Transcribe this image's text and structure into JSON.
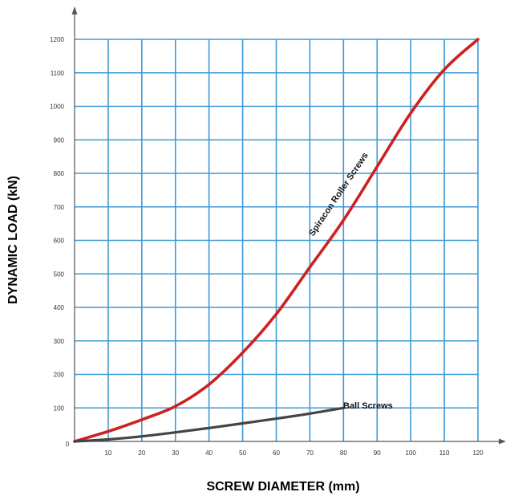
{
  "chart_data": {
    "type": "line",
    "xlabel": "SCREW DIAMETER (mm)",
    "ylabel": "DYNAMIC LOAD (kN)",
    "xlim": [
      0,
      120
    ],
    "ylim": [
      0,
      1200
    ],
    "x_ticks": [
      10,
      20,
      30,
      40,
      50,
      60,
      70,
      80,
      90,
      100,
      110,
      120
    ],
    "y_ticks": [
      100,
      200,
      300,
      400,
      500,
      600,
      700,
      800,
      900,
      1000,
      1100,
      1200
    ],
    "origin_label": "0",
    "grid": true,
    "series": [
      {
        "name": "Spiracon Roller Screws",
        "color": "#cc2222",
        "x": [
          0,
          10,
          20,
          30,
          40,
          50,
          60,
          70,
          80,
          90,
          100,
          110,
          120
        ],
        "y": [
          0,
          30,
          65,
          105,
          170,
          265,
          380,
          520,
          660,
          820,
          980,
          1110,
          1200
        ]
      },
      {
        "name": "Ball Screws",
        "color": "#444444",
        "x": [
          0,
          10,
          20,
          30,
          40,
          50,
          60,
          70,
          80
        ],
        "y": [
          0,
          6,
          15,
          27,
          40,
          54,
          68,
          83,
          100
        ]
      }
    ]
  },
  "colors": {
    "grid": "#3d9ad6",
    "axis": "#555555"
  }
}
